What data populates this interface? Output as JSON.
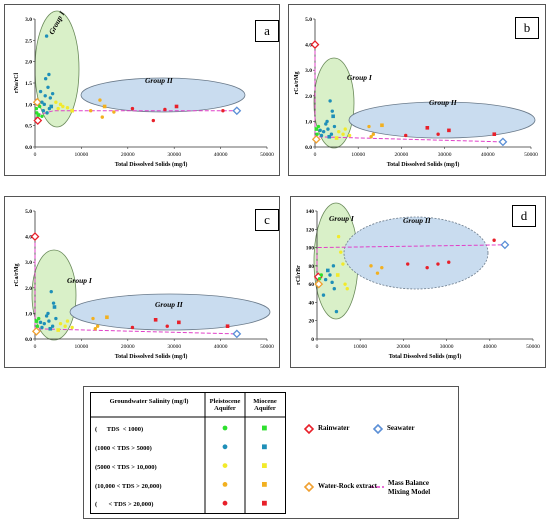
{
  "colors": {
    "rain": "#e8202a",
    "sea": "#5b8fd6",
    "wr": "#f0a030",
    "mix": "#e040c8",
    "lt1000": "#2ee02e",
    "c1000_5000": "#1f8fb8",
    "c5000_10000": "#f2ea2a",
    "c10000_20000": "#f2b020",
    "gt20000": "#e8202a",
    "group_fill": "#c9dcef",
    "group1_fill": "#d9f0c8"
  },
  "chart_data": [
    {
      "id": "a",
      "type": "scatter",
      "panel_label": "a",
      "xlabel": "Total Dissolved Solids (mg/l)",
      "ylabel": "rNa/rCl",
      "xlim": [
        0,
        50000
      ],
      "ylim": [
        0,
        3.0
      ],
      "xticks": [
        "0",
        "10000",
        "20000",
        "30000",
        "40000",
        "50000"
      ],
      "yticks": [
        "0.0",
        "0.5",
        "1.0",
        "1.5",
        "2.0",
        "2.5",
        "3.0"
      ],
      "group1_label": "Group I",
      "group2_label": "Group II",
      "mixing_line": [
        [
          0,
          0.62
        ],
        [
          500,
          0.75
        ],
        [
          4000,
          0.85
        ],
        [
          43500,
          0.85
        ]
      ],
      "points": [
        {
          "x": 600,
          "y": 0.62,
          "cls": "rain",
          "shape": "diamond"
        },
        {
          "x": 43500,
          "y": 0.85,
          "cls": "sea",
          "shape": "diamond"
        },
        {
          "x": 500,
          "y": 1.05,
          "cls": "wr",
          "shape": "diamond"
        },
        {
          "x": 300,
          "y": 0.9,
          "cls": "lt1000",
          "shape": "circle"
        },
        {
          "x": 700,
          "y": 0.75,
          "cls": "lt1000",
          "shape": "square"
        },
        {
          "x": 1000,
          "y": 0.95,
          "cls": "lt1000",
          "shape": "circle"
        },
        {
          "x": 1500,
          "y": 0.72,
          "cls": "lt1000",
          "shape": "circle"
        },
        {
          "x": 400,
          "y": 0.8,
          "cls": "lt1000",
          "shape": "circle"
        },
        {
          "x": 2500,
          "y": 2.6,
          "cls": "c1000_5000",
          "shape": "circle"
        },
        {
          "x": 3000,
          "y": 1.7,
          "cls": "c1000_5000",
          "shape": "circle"
        },
        {
          "x": 2800,
          "y": 1.4,
          "cls": "c1000_5000",
          "shape": "circle"
        },
        {
          "x": 2200,
          "y": 1.2,
          "cls": "c1000_5000",
          "shape": "circle"
        },
        {
          "x": 3300,
          "y": 1.15,
          "cls": "c1000_5000",
          "shape": "circle"
        },
        {
          "x": 2000,
          "y": 1.0,
          "cls": "c1000_5000",
          "shape": "circle"
        },
        {
          "x": 3500,
          "y": 0.95,
          "cls": "c1000_5000",
          "shape": "square"
        },
        {
          "x": 1800,
          "y": 0.85,
          "cls": "c1000_5000",
          "shape": "circle"
        },
        {
          "x": 2600,
          "y": 0.8,
          "cls": "c1000_5000",
          "shape": "circle"
        },
        {
          "x": 3100,
          "y": 0.9,
          "cls": "c1000_5000",
          "shape": "circle"
        },
        {
          "x": 1500,
          "y": 1.05,
          "cls": "c1000_5000",
          "shape": "circle"
        },
        {
          "x": 2300,
          "y": 1.6,
          "cls": "c1000_5000",
          "shape": "circle"
        },
        {
          "x": 3800,
          "y": 1.25,
          "cls": "c1000_5000",
          "shape": "circle"
        },
        {
          "x": 1200,
          "y": 1.3,
          "cls": "c1000_5000",
          "shape": "circle"
        },
        {
          "x": 5000,
          "y": 0.9,
          "cls": "c5000_10000",
          "shape": "circle"
        },
        {
          "x": 6000,
          "y": 0.95,
          "cls": "c5000_10000",
          "shape": "circle"
        },
        {
          "x": 7000,
          "y": 0.92,
          "cls": "c5000_10000",
          "shape": "circle"
        },
        {
          "x": 5500,
          "y": 1.0,
          "cls": "c5000_10000",
          "shape": "circle"
        },
        {
          "x": 4500,
          "y": 1.05,
          "cls": "c5000_10000",
          "shape": "circle"
        },
        {
          "x": 8000,
          "y": 0.85,
          "cls": "c5000_10000",
          "shape": "square"
        },
        {
          "x": 12000,
          "y": 0.85,
          "cls": "c10000_20000",
          "shape": "circle"
        },
        {
          "x": 14000,
          "y": 1.1,
          "cls": "c10000_20000",
          "shape": "circle"
        },
        {
          "x": 15000,
          "y": 0.95,
          "cls": "c10000_20000",
          "shape": "square"
        },
        {
          "x": 14500,
          "y": 0.7,
          "cls": "c10000_20000",
          "shape": "circle"
        },
        {
          "x": 17000,
          "y": 0.82,
          "cls": "c10000_20000",
          "shape": "circle"
        },
        {
          "x": 21000,
          "y": 0.9,
          "cls": "gt20000",
          "shape": "circle"
        },
        {
          "x": 25500,
          "y": 0.62,
          "cls": "gt20000",
          "shape": "circle"
        },
        {
          "x": 28000,
          "y": 0.88,
          "cls": "gt20000",
          "shape": "circle"
        },
        {
          "x": 30500,
          "y": 0.95,
          "cls": "gt20000",
          "shape": "square"
        },
        {
          "x": 40500,
          "y": 0.85,
          "cls": "gt20000",
          "shape": "circle"
        }
      ]
    },
    {
      "id": "b",
      "type": "scatter",
      "panel_label": "b",
      "xlabel": "Total Dissolved Solids (mg/l)",
      "ylabel": "rCa/rMg",
      "xlim": [
        0,
        50000
      ],
      "ylim": [
        0,
        5.0
      ],
      "xticks": [
        "0",
        "10000",
        "20000",
        "30000",
        "40000",
        "50000"
      ],
      "yticks": [
        "0.0",
        "1.0",
        "2.0",
        "3.0",
        "4.0",
        "5.0"
      ],
      "group1_label": "Group I",
      "group2_label": "Group II",
      "mixing_line": [
        [
          0,
          4.0
        ],
        [
          0,
          0.4
        ],
        [
          43500,
          0.2
        ]
      ],
      "points": [
        {
          "x": 0,
          "y": 4.0,
          "cls": "rain",
          "shape": "diamond"
        },
        {
          "x": 43500,
          "y": 0.2,
          "cls": "sea",
          "shape": "diamond"
        },
        {
          "x": 300,
          "y": 0.3,
          "cls": "wr",
          "shape": "diamond"
        },
        {
          "x": 500,
          "y": 0.5,
          "cls": "lt1000",
          "shape": "circle"
        },
        {
          "x": 800,
          "y": 0.8,
          "cls": "lt1000",
          "shape": "circle"
        },
        {
          "x": 300,
          "y": 0.7,
          "cls": "lt1000",
          "shape": "square"
        },
        {
          "x": 3500,
          "y": 1.8,
          "cls": "c1000_5000",
          "shape": "circle"
        },
        {
          "x": 4000,
          "y": 1.4,
          "cls": "c1000_5000",
          "shape": "circle"
        },
        {
          "x": 4200,
          "y": 1.2,
          "cls": "c1000_5000",
          "shape": "square"
        },
        {
          "x": 2500,
          "y": 0.9,
          "cls": "c1000_5000",
          "shape": "circle"
        },
        {
          "x": 3000,
          "y": 0.7,
          "cls": "c1000_5000",
          "shape": "circle"
        },
        {
          "x": 2000,
          "y": 0.6,
          "cls": "c1000_5000",
          "shape": "circle"
        },
        {
          "x": 3800,
          "y": 0.5,
          "cls": "c1000_5000",
          "shape": "circle"
        },
        {
          "x": 1500,
          "y": 0.45,
          "cls": "c1000_5000",
          "shape": "circle"
        },
        {
          "x": 2800,
          "y": 1.0,
          "cls": "c1000_5000",
          "shape": "circle"
        },
        {
          "x": 1200,
          "y": 0.65,
          "cls": "c1000_5000",
          "shape": "circle"
        },
        {
          "x": 4500,
          "y": 0.8,
          "cls": "c1000_5000",
          "shape": "circle"
        },
        {
          "x": 3300,
          "y": 0.4,
          "cls": "c1000_5000",
          "shape": "square"
        },
        {
          "x": 5500,
          "y": 0.6,
          "cls": "c5000_10000",
          "shape": "circle"
        },
        {
          "x": 6500,
          "y": 0.5,
          "cls": "c5000_10000",
          "shape": "circle"
        },
        {
          "x": 7000,
          "y": 0.7,
          "cls": "c5000_10000",
          "shape": "circle"
        },
        {
          "x": 5000,
          "y": 0.35,
          "cls": "c5000_10000",
          "shape": "square"
        },
        {
          "x": 8000,
          "y": 0.45,
          "cls": "c5000_10000",
          "shape": "circle"
        },
        {
          "x": 12500,
          "y": 0.8,
          "cls": "c10000_20000",
          "shape": "circle"
        },
        {
          "x": 13500,
          "y": 0.5,
          "cls": "c10000_20000",
          "shape": "circle"
        },
        {
          "x": 15500,
          "y": 0.85,
          "cls": "c10000_20000",
          "shape": "square"
        },
        {
          "x": 13000,
          "y": 0.4,
          "cls": "c10000_20000",
          "shape": "circle"
        },
        {
          "x": 21000,
          "y": 0.45,
          "cls": "gt20000",
          "shape": "circle"
        },
        {
          "x": 26000,
          "y": 0.75,
          "cls": "gt20000",
          "shape": "square"
        },
        {
          "x": 28500,
          "y": 0.5,
          "cls": "gt20000",
          "shape": "circle"
        },
        {
          "x": 31000,
          "y": 0.65,
          "cls": "gt20000",
          "shape": "square"
        },
        {
          "x": 41500,
          "y": 0.5,
          "cls": "gt20000",
          "shape": "square"
        }
      ]
    },
    {
      "id": "c",
      "type": "scatter",
      "panel_label": "c",
      "xlabel": "Total Dissolved Solids (mg/l)",
      "ylabel": "rCa/rMg",
      "xlim": [
        0,
        50000
      ],
      "ylim": [
        0,
        5.0
      ],
      "xticks": [
        "0",
        "10000",
        "20000",
        "30000",
        "40000",
        "50000"
      ],
      "yticks": [
        "0.0",
        "1.0",
        "2.0",
        "3.0",
        "4.0",
        "5.0"
      ],
      "group1_label": "Group I",
      "group2_label": "Group II",
      "mixing_line": [
        [
          0,
          4.0
        ],
        [
          0,
          0.4
        ],
        [
          43500,
          0.2
        ]
      ],
      "points": [
        {
          "x": 0,
          "y": 4.0,
          "cls": "rain",
          "shape": "diamond"
        },
        {
          "x": 43500,
          "y": 0.2,
          "cls": "sea",
          "shape": "diamond"
        },
        {
          "x": 300,
          "y": 0.3,
          "cls": "wr",
          "shape": "diamond"
        },
        {
          "x": 500,
          "y": 0.5,
          "cls": "lt1000",
          "shape": "circle"
        },
        {
          "x": 800,
          "y": 0.8,
          "cls": "lt1000",
          "shape": "circle"
        },
        {
          "x": 300,
          "y": 0.7,
          "cls": "lt1000",
          "shape": "square"
        },
        {
          "x": 3500,
          "y": 1.85,
          "cls": "c1000_5000",
          "shape": "circle"
        },
        {
          "x": 4000,
          "y": 1.4,
          "cls": "c1000_5000",
          "shape": "circle"
        },
        {
          "x": 4200,
          "y": 1.25,
          "cls": "c1000_5000",
          "shape": "square"
        },
        {
          "x": 2500,
          "y": 0.9,
          "cls": "c1000_5000",
          "shape": "circle"
        },
        {
          "x": 3000,
          "y": 0.7,
          "cls": "c1000_5000",
          "shape": "circle"
        },
        {
          "x": 2000,
          "y": 0.6,
          "cls": "c1000_5000",
          "shape": "circle"
        },
        {
          "x": 3800,
          "y": 0.5,
          "cls": "c1000_5000",
          "shape": "circle"
        },
        {
          "x": 1500,
          "y": 0.45,
          "cls": "c1000_5000",
          "shape": "circle"
        },
        {
          "x": 2800,
          "y": 1.0,
          "cls": "c1000_5000",
          "shape": "circle"
        },
        {
          "x": 1200,
          "y": 0.65,
          "cls": "c1000_5000",
          "shape": "circle"
        },
        {
          "x": 4500,
          "y": 0.8,
          "cls": "c1000_5000",
          "shape": "circle"
        },
        {
          "x": 3300,
          "y": 0.4,
          "cls": "c1000_5000",
          "shape": "square"
        },
        {
          "x": 5500,
          "y": 0.6,
          "cls": "c5000_10000",
          "shape": "circle"
        },
        {
          "x": 6500,
          "y": 0.5,
          "cls": "c5000_10000",
          "shape": "circle"
        },
        {
          "x": 7000,
          "y": 0.7,
          "cls": "c5000_10000",
          "shape": "circle"
        },
        {
          "x": 5000,
          "y": 0.35,
          "cls": "c5000_10000",
          "shape": "square"
        },
        {
          "x": 8000,
          "y": 0.45,
          "cls": "c5000_10000",
          "shape": "circle"
        },
        {
          "x": 12500,
          "y": 0.8,
          "cls": "c10000_20000",
          "shape": "circle"
        },
        {
          "x": 13500,
          "y": 0.5,
          "cls": "c10000_20000",
          "shape": "circle"
        },
        {
          "x": 15500,
          "y": 0.85,
          "cls": "c10000_20000",
          "shape": "square"
        },
        {
          "x": 13000,
          "y": 0.4,
          "cls": "c10000_20000",
          "shape": "circle"
        },
        {
          "x": 21000,
          "y": 0.45,
          "cls": "gt20000",
          "shape": "circle"
        },
        {
          "x": 26000,
          "y": 0.75,
          "cls": "gt20000",
          "shape": "square"
        },
        {
          "x": 28500,
          "y": 0.5,
          "cls": "gt20000",
          "shape": "circle"
        },
        {
          "x": 31000,
          "y": 0.65,
          "cls": "gt20000",
          "shape": "square"
        },
        {
          "x": 41500,
          "y": 0.5,
          "cls": "gt20000",
          "shape": "square"
        }
      ]
    },
    {
      "id": "d",
      "type": "scatter",
      "panel_label": "d",
      "xlabel": "Total Dissolved Solids (mg/l)",
      "ylabel": "rCl/rBr",
      "xlim": [
        0,
        50000
      ],
      "ylim": [
        0,
        140
      ],
      "xticks": [
        "0",
        "10000",
        "20000",
        "30000",
        "40000",
        "50000"
      ],
      "yticks": [
        "0",
        "20",
        "40",
        "60",
        "80",
        "100",
        "120",
        "140"
      ],
      "group1_label": "Group I",
      "group2_label": "Group II",
      "mixing_line": [
        [
          0,
          68
        ],
        [
          0,
          100
        ],
        [
          43500,
          103
        ]
      ],
      "points": [
        {
          "x": 300,
          "y": 68,
          "cls": "rain",
          "shape": "diamond"
        },
        {
          "x": 43500,
          "y": 103,
          "cls": "sea",
          "shape": "diamond"
        },
        {
          "x": 400,
          "y": 60,
          "cls": "wr",
          "shape": "diamond"
        },
        {
          "x": 600,
          "y": 66,
          "cls": "lt1000",
          "shape": "circle"
        },
        {
          "x": 1000,
          "y": 70,
          "cls": "lt1000",
          "shape": "circle"
        },
        {
          "x": 3500,
          "y": 62,
          "cls": "c1000_5000",
          "shape": "circle"
        },
        {
          "x": 4000,
          "y": 55,
          "cls": "c1000_5000",
          "shape": "circle"
        },
        {
          "x": 4500,
          "y": 30,
          "cls": "c1000_5000",
          "shape": "circle"
        },
        {
          "x": 3000,
          "y": 70,
          "cls": "c1000_5000",
          "shape": "circle"
        },
        {
          "x": 2500,
          "y": 75,
          "cls": "c1000_5000",
          "shape": "square"
        },
        {
          "x": 2000,
          "y": 65,
          "cls": "c1000_5000",
          "shape": "circle"
        },
        {
          "x": 3800,
          "y": 80,
          "cls": "c1000_5000",
          "shape": "circle"
        },
        {
          "x": 1500,
          "y": 48,
          "cls": "c1000_5000",
          "shape": "circle"
        },
        {
          "x": 5000,
          "y": 112,
          "cls": "c5000_10000",
          "shape": "circle"
        },
        {
          "x": 5500,
          "y": 95,
          "cls": "c5000_10000",
          "shape": "circle"
        },
        {
          "x": 6000,
          "y": 82,
          "cls": "c5000_10000",
          "shape": "circle"
        },
        {
          "x": 6500,
          "y": 60,
          "cls": "c5000_10000",
          "shape": "circle"
        },
        {
          "x": 7000,
          "y": 55,
          "cls": "c5000_10000",
          "shape": "circle"
        },
        {
          "x": 4800,
          "y": 70,
          "cls": "c5000_10000",
          "shape": "square"
        },
        {
          "x": 12500,
          "y": 80,
          "cls": "c10000_20000",
          "shape": "circle"
        },
        {
          "x": 14000,
          "y": 72,
          "cls": "c10000_20000",
          "shape": "circle"
        },
        {
          "x": 15000,
          "y": 78,
          "cls": "c10000_20000",
          "shape": "circle"
        },
        {
          "x": 21000,
          "y": 82,
          "cls": "gt20000",
          "shape": "circle"
        },
        {
          "x": 25500,
          "y": 78,
          "cls": "gt20000",
          "shape": "circle"
        },
        {
          "x": 28000,
          "y": 82,
          "cls": "gt20000",
          "shape": "circle"
        },
        {
          "x": 30500,
          "y": 84,
          "cls": "gt20000",
          "shape": "circle"
        },
        {
          "x": 41000,
          "y": 108,
          "cls": "gt20000",
          "shape": "circle"
        }
      ]
    }
  ],
  "legend": {
    "header_salinity": "Groundwater Salinity (mg/l)",
    "header_pleistocene": "Pleistocene Aquifer",
    "header_miocene": "Miocene Aquifer",
    "rows": [
      {
        "label": "(      TDS  < 1000)",
        "cls": "lt1000"
      },
      {
        "label": "(1000 < TDS > 5000)",
        "cls": "c1000_5000"
      },
      {
        "label": "(5000 < TDS > 10,000)",
        "cls": "c5000_10000"
      },
      {
        "label": "(10,000 < TDS > 20,000)",
        "cls": "c10000_20000"
      },
      {
        "label": "(       < TDS > 20,000)",
        "cls": "gt20000"
      }
    ],
    "rainwater": "Rainwater",
    "seawater": "Seawater",
    "water_rock": "Water-Rock extract",
    "mixing": "Mass Balance Mixing Model"
  }
}
